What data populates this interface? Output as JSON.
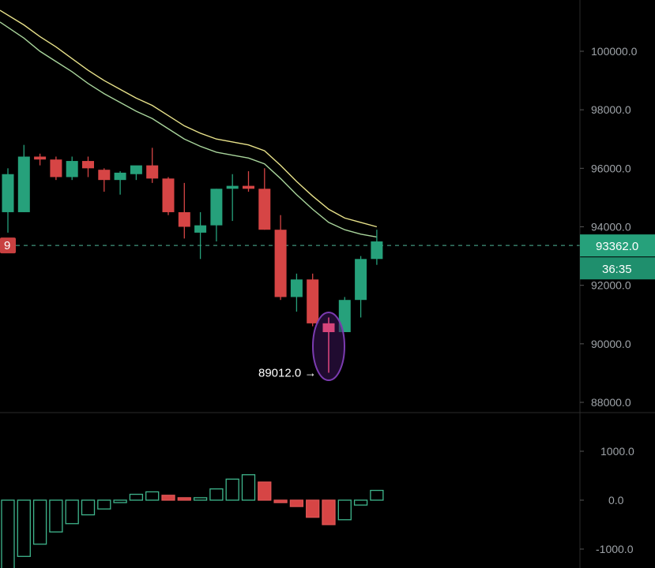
{
  "chart_data": [
    {
      "type": "candlestick",
      "title": "",
      "ylim": [
        87600,
        102000
      ],
      "yticks": [
        88000,
        90000,
        92000,
        94000,
        96000,
        98000,
        100000
      ],
      "ytick_labels": [
        "88000.0",
        "90000.0",
        "92000.0",
        "94000.0",
        "96000.0",
        "98000.0",
        "100000.0"
      ],
      "candles": [
        {
          "o": 94500,
          "h": 96000,
          "l": 93800,
          "c": 95800
        },
        {
          "o": 94500,
          "h": 96800,
          "l": 94500,
          "c": 96400
        },
        {
          "o": 96400,
          "h": 96500,
          "l": 96100,
          "c": 96300
        },
        {
          "o": 96300,
          "h": 96400,
          "l": 95600,
          "c": 95700
        },
        {
          "o": 95700,
          "h": 96400,
          "l": 95600,
          "c": 96250
        },
        {
          "o": 96250,
          "h": 96400,
          "l": 95700,
          "c": 96000
        },
        {
          "o": 95950,
          "h": 96000,
          "l": 95200,
          "c": 95600
        },
        {
          "o": 95600,
          "h": 95900,
          "l": 95100,
          "c": 95850
        },
        {
          "o": 95800,
          "h": 96000,
          "l": 95600,
          "c": 96100
        },
        {
          "o": 96100,
          "h": 96700,
          "l": 95500,
          "c": 95650
        },
        {
          "o": 95650,
          "h": 95700,
          "l": 94400,
          "c": 94500
        },
        {
          "o": 94500,
          "h": 95500,
          "l": 93600,
          "c": 94000
        },
        {
          "o": 93800,
          "h": 94500,
          "l": 92900,
          "c": 94050
        },
        {
          "o": 94050,
          "h": 95300,
          "l": 93500,
          "c": 95300
        },
        {
          "o": 95300,
          "h": 95800,
          "l": 94200,
          "c": 95400
        },
        {
          "o": 95400,
          "h": 95900,
          "l": 95200,
          "c": 95300
        },
        {
          "o": 95300,
          "h": 96000,
          "l": 93900,
          "c": 93900
        },
        {
          "o": 93900,
          "h": 94400,
          "l": 91500,
          "c": 91600
        },
        {
          "o": 91600,
          "h": 92400,
          "l": 91100,
          "c": 92200
        },
        {
          "o": 92200,
          "h": 92400,
          "l": 90600,
          "c": 90700
        },
        {
          "o": 90700,
          "h": 90900,
          "l": 89012,
          "c": 90400
        },
        {
          "o": 90400,
          "h": 91600,
          "l": 90400,
          "c": 91500
        },
        {
          "o": 91500,
          "h": 93000,
          "l": 90900,
          "c": 92900
        },
        {
          "o": 92900,
          "h": 93900,
          "l": 92700,
          "c": 93500
        }
      ],
      "moving_averages": [
        {
          "color": "#e8e28a",
          "values": [
            101400,
            100900,
            100500,
            100150,
            99750,
            99350,
            99000,
            98700,
            98400,
            98150,
            97800,
            97450,
            97200,
            97000,
            96900,
            96800,
            96600,
            96100,
            95550,
            95050,
            94600,
            94300,
            94150,
            94000
          ]
        },
        {
          "color": "#a8d49b",
          "values": [
            101000,
            100450,
            100000,
            99650,
            99300,
            98900,
            98550,
            98250,
            97950,
            97700,
            97350,
            97000,
            96750,
            96550,
            96450,
            96350,
            96150,
            95650,
            95100,
            94600,
            94150,
            93900,
            93750,
            93650
          ]
        }
      ],
      "current_price_label": "93362.0",
      "countdown_label": "36:35",
      "left_marker_label": "9",
      "low_annotation": {
        "label": "89012.0",
        "value": 89012
      }
    },
    {
      "type": "histogram",
      "title": "",
      "ylim": [
        -1400,
        1600
      ],
      "yticks": [
        1000,
        0,
        -1000
      ],
      "ytick_labels": [
        "1000.0",
        "0.0",
        "-1000.0"
      ],
      "values": [
        -1400,
        -1150,
        -900,
        -650,
        -480,
        -300,
        -180,
        -50,
        120,
        170,
        100,
        50,
        50,
        230,
        430,
        520,
        370,
        -50,
        -130,
        -350,
        -500,
        -400,
        -100,
        200
      ]
    }
  ],
  "colors": {
    "up": "#26a17b",
    "down": "#d64545",
    "up_hollow_stroke": "#3fb58c",
    "down_hollow_stroke": "#e05555",
    "highlight_ellipse": "#7b3bb0",
    "highlight_fill": "#3a1458",
    "highlight_candle": "#d6457a",
    "grid_divider": "#2a2a2a",
    "axis_text": "#9ea3a8"
  }
}
